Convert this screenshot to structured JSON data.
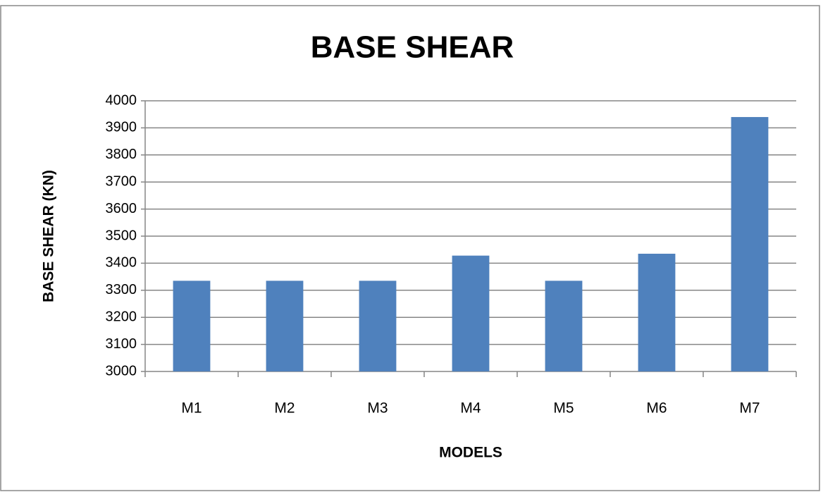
{
  "chart_data": {
    "type": "bar",
    "title": "BASE SHEAR",
    "x_label": "MODELS",
    "y_label": "BASE SHEAR  (KN)",
    "categories": [
      "M1",
      "M2",
      "M3",
      "M4",
      "M5",
      "M6",
      "M7"
    ],
    "values": [
      3335,
      3335,
      3335,
      3428,
      3335,
      3435,
      3940
    ],
    "color": "#4f81bd",
    "ylim": [
      3000,
      4000
    ],
    "yticks": [
      3000,
      3100,
      3200,
      3300,
      3400,
      3500,
      3600,
      3700,
      3800,
      3900,
      4000
    ],
    "grid": true
  }
}
